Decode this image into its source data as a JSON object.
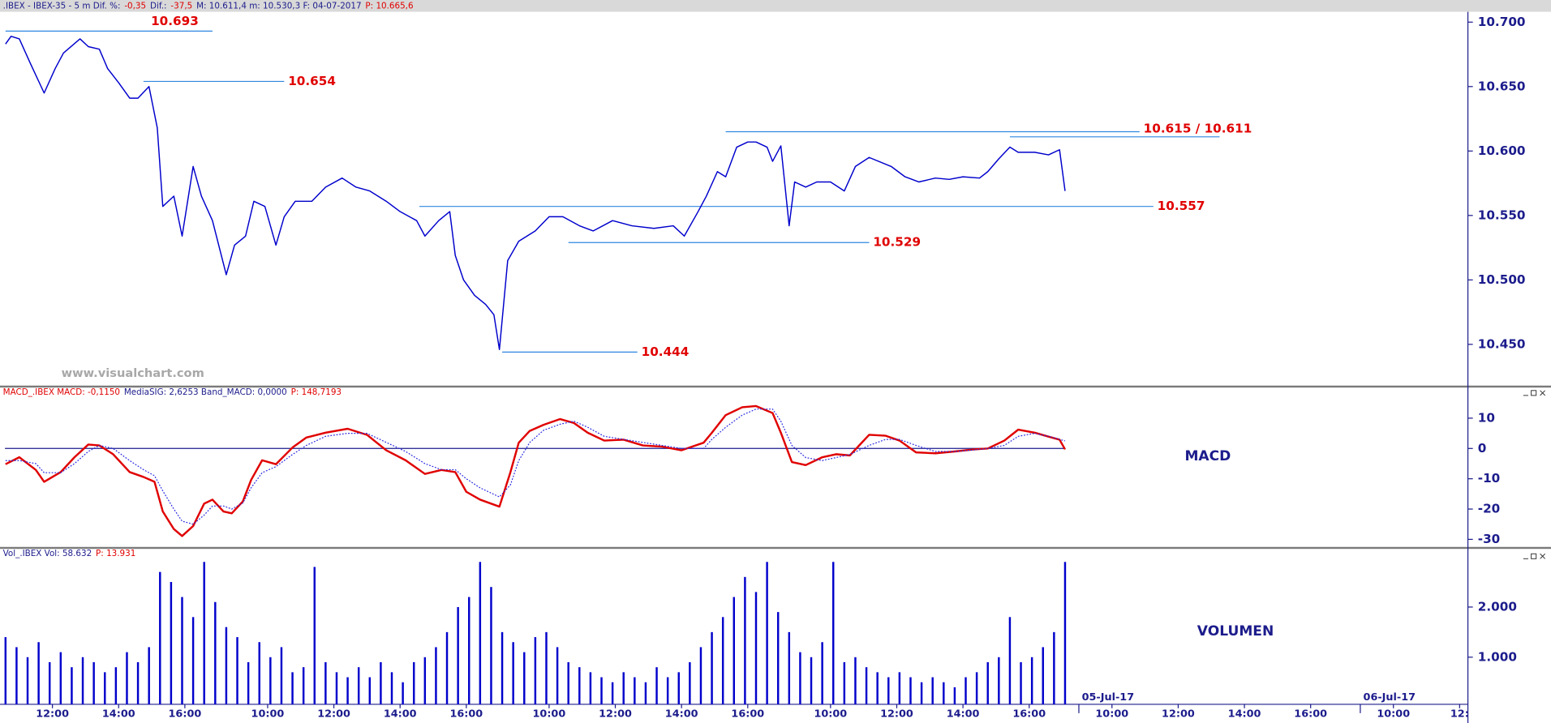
{
  "chart_data": [
    {
      "type": "line",
      "header": [
        {
          "text": ".IBEX - IBEX-35 - 5 m  Dif. %:",
          "color": "#1c1c8c"
        },
        {
          "text": "-0,35",
          "color": "#e00000"
        },
        {
          "text": "Dif.:",
          "color": "#1c1c8c"
        },
        {
          "text": "-37,5",
          "color": "#e00000"
        },
        {
          "text": "M: 10.611,4  m: 10.530,3  F: 04-07-2017",
          "color": "#1c1c8c"
        },
        {
          "text": "P: 10.665,6",
          "color": "#e00000"
        }
      ],
      "watermark": "www.visualchart.com",
      "xlim": [
        17,
        549
      ],
      "ylim": [
        10.418,
        10.708
      ],
      "yticks": [
        {
          "value": 10.45,
          "label": "10.450"
        },
        {
          "value": 10.5,
          "label": "10.500"
        },
        {
          "value": 10.55,
          "label": "10.550"
        },
        {
          "value": 10.6,
          "label": "10.600"
        },
        {
          "value": 10.65,
          "label": "10.650"
        },
        {
          "value": 10.7,
          "label": "10.700"
        }
      ],
      "x": [
        19,
        21,
        24,
        28,
        33,
        37,
        40,
        46,
        49,
        53,
        56,
        60,
        64,
        67,
        71,
        74,
        76,
        80,
        83,
        87,
        90,
        94,
        99,
        102,
        106,
        109,
        113,
        117,
        120,
        124,
        130,
        135,
        141,
        146,
        151,
        157,
        162,
        168,
        171,
        176,
        180,
        182,
        185,
        189,
        193,
        196,
        198,
        201,
        205,
        211,
        216,
        221,
        227,
        232,
        239,
        246,
        254,
        261,
        265,
        270,
        273,
        277,
        280,
        284,
        288,
        291,
        295,
        297,
        300,
        303,
        305,
        309,
        313,
        318,
        323,
        327,
        332,
        340,
        345,
        350,
        356,
        361,
        366,
        372,
        375,
        379,
        383,
        386,
        392,
        397,
        401,
        403
      ],
      "series": [
        {
          "color": "#0000cc",
          "values": [
            10.683,
            10.689,
            10.687,
            10.668,
            10.645,
            10.664,
            10.676,
            10.687,
            10.681,
            10.679,
            10.664,
            10.653,
            10.641,
            10.641,
            10.65,
            10.618,
            10.557,
            10.565,
            10.534,
            10.588,
            10.565,
            10.546,
            10.504,
            10.527,
            10.534,
            10.561,
            10.557,
            10.527,
            10.549,
            10.561,
            10.561,
            10.572,
            10.579,
            10.572,
            10.569,
            10.561,
            10.553,
            10.546,
            10.534,
            10.546,
            10.553,
            10.519,
            10.5,
            10.488,
            10.481,
            10.473,
            10.446,
            10.515,
            10.53,
            10.538,
            10.549,
            10.549,
            10.542,
            10.538,
            10.546,
            10.542,
            10.54,
            10.542,
            10.534,
            10.553,
            10.565,
            10.584,
            10.58,
            10.603,
            10.607,
            10.607,
            10.603,
            10.592,
            10.604,
            10.542,
            10.576,
            10.572,
            10.576,
            10.576,
            10.569,
            10.588,
            10.595,
            10.588,
            10.58,
            10.576,
            10.579,
            10.578,
            10.58,
            10.579,
            10.584,
            10.594,
            10.603,
            10.599,
            10.599,
            10.597,
            10.601,
            10.569
          ]
        }
      ],
      "level_color": "#2f86e0",
      "levels": [
        {
          "label": "10.693",
          "lines": [
            {
              "value": 10.693,
              "from": 19,
              "to": 94
            }
          ]
        },
        {
          "label": "10.654",
          "lines": [
            {
              "value": 10.654,
              "from": 69,
              "to": 120
            }
          ]
        },
        {
          "label": "10.615 / 10.611",
          "lines": [
            {
              "value": 10.615,
              "from": 280,
              "to": 430
            },
            {
              "value": 10.611,
              "from": 383,
              "to": 459
            }
          ]
        },
        {
          "label": "10.557",
          "lines": [
            {
              "value": 10.557,
              "from": 169,
              "to": 435
            }
          ]
        },
        {
          "label": "10.529",
          "lines": [
            {
              "value": 10.529,
              "from": 223,
              "to": 332
            }
          ]
        },
        {
          "label": "10.444",
          "lines": [
            {
              "value": 10.444,
              "from": 199,
              "to": 248
            }
          ]
        }
      ]
    },
    {
      "type": "line",
      "header": [
        {
          "text": "MACD_.IBEX  MACD: -0,1150",
          "color": "#e00000"
        },
        {
          "text": "MediaSIG: 2,6253  Band_MACD: 0,0000",
          "color": "#1c1c8c"
        },
        {
          "text": "P: 148,7193",
          "color": "#e00000"
        }
      ],
      "label": "MACD",
      "band": 0,
      "band_color": "#1c1c8c",
      "xlim": [
        17,
        549
      ],
      "ylim": [
        -32.5,
        20.1
      ],
      "yticks": [
        -30,
        -20,
        -10,
        0,
        10
      ],
      "x": [
        19,
        24,
        30,
        33,
        39,
        44,
        49,
        53,
        58,
        64,
        69,
        73,
        76,
        80,
        83,
        87,
        91,
        94,
        98,
        101,
        105,
        108,
        112,
        117,
        123,
        128,
        135,
        143,
        150,
        157,
        164,
        171,
        177,
        182,
        186,
        191,
        198,
        202,
        205,
        209,
        214,
        220,
        225,
        230,
        236,
        243,
        250,
        257,
        264,
        272,
        275,
        280,
        286,
        291,
        297,
        300,
        304,
        309,
        315,
        320,
        325,
        332,
        338,
        343,
        349,
        356,
        363,
        370,
        375,
        381,
        386,
        392,
        397,
        401,
        403
      ],
      "series": [
        {
          "color": "#e00000",
          "style": "solid",
          "values": [
            -5.2,
            -2.9,
            -7.1,
            -11,
            -7.8,
            -2.9,
            1.3,
            1.0,
            -1.9,
            -7.8,
            -9.4,
            -11,
            -20.8,
            -26.6,
            -28.9,
            -25.6,
            -18.2,
            -16.9,
            -20.8,
            -21.4,
            -17.5,
            -10.4,
            -3.9,
            -5.2,
            0.3,
            3.6,
            5.2,
            6.5,
            4.5,
            -0.6,
            -3.9,
            -8.4,
            -7.1,
            -7.8,
            -14.3,
            -16.9,
            -19.2,
            -7.8,
            1.9,
            5.8,
            7.8,
            9.7,
            8.4,
            5.2,
            2.6,
            2.9,
            1.0,
            0.6,
            -0.6,
            1.9,
            5.2,
            11.0,
            13.6,
            14.0,
            11.7,
            5.2,
            -4.5,
            -5.5,
            -2.9,
            -1.9,
            -2.3,
            4.5,
            4.2,
            2.6,
            -1.3,
            -1.6,
            -1.0,
            -0.3,
            0,
            2.6,
            6.2,
            5.2,
            3.9,
            2.9,
            -0.3
          ]
        },
        {
          "color": "#2a2ae0",
          "style": "dotted",
          "values": [
            -4,
            -4,
            -5,
            -8,
            -8,
            -5,
            -1,
            1,
            0,
            -4,
            -7,
            -9,
            -14,
            -20,
            -24,
            -25,
            -22,
            -19,
            -19,
            -20,
            -18,
            -13,
            -8,
            -6,
            -2,
            1,
            4,
            5,
            5,
            2,
            -1,
            -5,
            -7,
            -7,
            -10,
            -13,
            -16,
            -12,
            -4,
            2,
            6,
            8,
            9,
            7,
            4,
            3,
            2,
            1,
            0,
            0,
            3,
            7,
            11,
            13,
            13,
            9,
            1,
            -3,
            -4,
            -3,
            -2,
            1,
            3,
            3,
            1,
            -1,
            -1,
            -0.5,
            0,
            1,
            4,
            5,
            4,
            3,
            2.5
          ]
        }
      ]
    },
    {
      "type": "bar",
      "header": [
        {
          "text": "Vol_.IBEX  Vol: 58.632",
          "color": "#1c1c8c"
        },
        {
          "text": "P: 13.931",
          "color": "#e00000"
        }
      ],
      "label": "VOLUMEN",
      "color": "#0000cc",
      "xlim": [
        17,
        549
      ],
      "ylim": [
        60,
        3160
      ],
      "yticks": [
        {
          "value": 1000,
          "label": "1.000"
        },
        {
          "value": 2000,
          "label": "2.000"
        }
      ],
      "xticks": [
        {
          "value": 36,
          "label": "12:00"
        },
        {
          "value": 60,
          "label": "14:00"
        },
        {
          "value": 84,
          "label": "16:00"
        },
        {
          "value": 114,
          "label": "10:00"
        },
        {
          "value": 138,
          "label": "12:00"
        },
        {
          "value": 162,
          "label": "14:00"
        },
        {
          "value": 186,
          "label": "16:00"
        },
        {
          "value": 216,
          "label": "10:00"
        },
        {
          "value": 240,
          "label": "12:00"
        },
        {
          "value": 264,
          "label": "14:00"
        },
        {
          "value": 288,
          "label": "16:00"
        },
        {
          "value": 318,
          "label": "10:00"
        },
        {
          "value": 342,
          "label": "12:00"
        },
        {
          "value": 366,
          "label": "14:00"
        },
        {
          "value": 390,
          "label": "16:00"
        },
        {
          "value": 408,
          "label": "05-Jul-17"
        },
        {
          "value": 420,
          "label": "10:00"
        },
        {
          "value": 444,
          "label": "12:00"
        },
        {
          "value": 468,
          "label": "14:00"
        },
        {
          "value": 492,
          "label": "16:00"
        },
        {
          "value": 510,
          "label": "06-Jul-17"
        },
        {
          "value": 522,
          "label": "10:00"
        },
        {
          "value": 546,
          "label": "12:"
        }
      ],
      "x": [
        19,
        23,
        27,
        31,
        35,
        39,
        43,
        47,
        51,
        55,
        59,
        63,
        67,
        71,
        75,
        79,
        83,
        87,
        91,
        95,
        99,
        103,
        107,
        111,
        115,
        119,
        123,
        127,
        131,
        135,
        139,
        143,
        147,
        151,
        155,
        159,
        163,
        167,
        171,
        175,
        179,
        183,
        187,
        191,
        195,
        199,
        203,
        207,
        211,
        215,
        219,
        223,
        227,
        231,
        235,
        239,
        243,
        247,
        251,
        255,
        259,
        263,
        267,
        271,
        275,
        279,
        283,
        287,
        291,
        295,
        299,
        303,
        307,
        311,
        315,
        319,
        323,
        327,
        331,
        335,
        339,
        343,
        347,
        351,
        355,
        359,
        363,
        367,
        371,
        375,
        379,
        383,
        387,
        391,
        395,
        399,
        403
      ],
      "values": [
        1400,
        1200,
        1000,
        1300,
        900,
        1100,
        800,
        1000,
        900,
        700,
        800,
        1100,
        900,
        1200,
        2700,
        2500,
        2200,
        1800,
        2900,
        2100,
        1600,
        1400,
        900,
        1300,
        1000,
        1200,
        700,
        800,
        2800,
        900,
        700,
        600,
        800,
        600,
        900,
        700,
        500,
        900,
        1000,
        1200,
        1500,
        2000,
        2200,
        2900,
        2400,
        1500,
        1300,
        1100,
        1400,
        1500,
        1200,
        900,
        800,
        700,
        600,
        500,
        700,
        600,
        500,
        800,
        600,
        700,
        900,
        1200,
        1500,
        1800,
        2200,
        2600,
        2300,
        2900,
        1900,
        1500,
        1100,
        1000,
        1300,
        2900,
        900,
        1000,
        800,
        700,
        600,
        700,
        600,
        500,
        600,
        500,
        400,
        600,
        700,
        900,
        1000,
        1800,
        900,
        1000,
        1200,
        1500,
        2900
      ]
    }
  ]
}
